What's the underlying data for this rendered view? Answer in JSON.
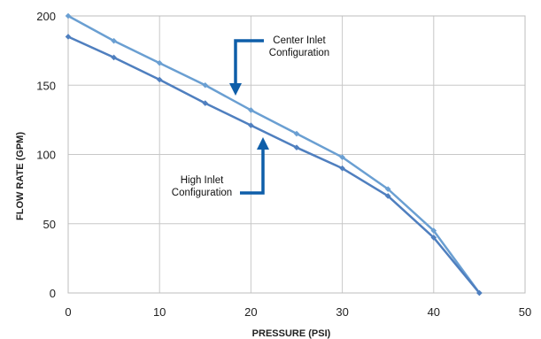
{
  "chart_data": {
    "type": "line",
    "title": "",
    "xlabel": "PRESSURE (PSI)",
    "ylabel": "FLOW RATE (GPM)",
    "xlim": [
      0,
      50
    ],
    "ylim": [
      0,
      200
    ],
    "xticks": [
      0,
      10,
      20,
      30,
      40,
      50
    ],
    "yticks": [
      0,
      50,
      100,
      150,
      200
    ],
    "grid": true,
    "series": [
      {
        "name": "Center Inlet Configuration",
        "color": "#6a9fd2",
        "x": [
          0,
          5,
          10,
          15,
          20,
          25,
          30,
          35,
          40,
          45
        ],
        "y": [
          200,
          182,
          166,
          150,
          132,
          115,
          98,
          75,
          45,
          0
        ]
      },
      {
        "name": "High Inlet Configuration",
        "color": "#4f7fbf",
        "x": [
          0,
          5,
          10,
          15,
          20,
          25,
          30,
          35,
          40,
          45
        ],
        "y": [
          185,
          170,
          154,
          137,
          121,
          105,
          90,
          70,
          40,
          0
        ]
      }
    ],
    "annotations": [
      {
        "lines": [
          "Center Inlet",
          "Configuration"
        ]
      },
      {
        "lines": [
          "High Inlet",
          "Configuration"
        ]
      }
    ],
    "arrow_color": "#0e5ea9"
  }
}
